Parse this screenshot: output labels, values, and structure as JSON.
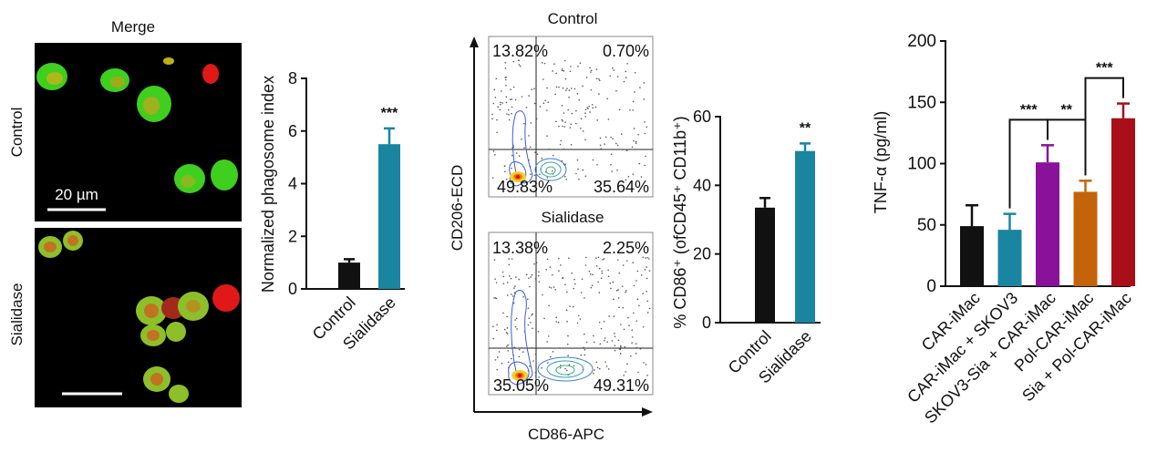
{
  "colors": {
    "control": "#111111",
    "sialidase": "#1a85a0",
    "purple": "#8a129a",
    "orange": "#c4640a",
    "darkred": "#a80f18",
    "micro_bg": "#000000",
    "cell_green": "#3fcf1f",
    "cell_red": "#e01818",
    "contour_blue": "#3a5fd0"
  },
  "micrograph": {
    "title": "Merge",
    "rows": [
      "Control",
      "Sialidase"
    ],
    "scalebar_label": "20 µm"
  },
  "flow": {
    "x_label": "CD86-APC",
    "y_label": "CD206-ECD",
    "panels": [
      {
        "title": "Control",
        "q_ul": "13.82%",
        "q_ur": "0.70%",
        "q_ll": "49.83%",
        "q_lr": "35.64%"
      },
      {
        "title": "Sialidase",
        "q_ul": "13.38%",
        "q_ur": "2.25%",
        "q_ll": "35.05%",
        "q_lr": "49.31%"
      }
    ]
  },
  "chart_data": [
    {
      "type": "bar",
      "categories": [
        "Control",
        "Sialidase"
      ],
      "values": [
        1.0,
        5.5
      ],
      "errors": [
        0.13,
        0.6
      ],
      "colors": [
        "#111111",
        "#1a85a0"
      ],
      "significance": [
        "",
        "***"
      ],
      "ylabel": "Normalized phagosome index",
      "xlabel": "",
      "ylim": [
        0,
        8
      ],
      "yticks": [
        0,
        2,
        4,
        6,
        8
      ]
    },
    {
      "type": "bar",
      "categories": [
        "Control",
        "Sialidase"
      ],
      "values": [
        33.5,
        50.0
      ],
      "errors": [
        2.8,
        2.2
      ],
      "colors": [
        "#111111",
        "#1a85a0"
      ],
      "significance": [
        "",
        "**"
      ],
      "ylabel": "% CD86⁺ (ofCD45⁺ CD11b⁺)",
      "xlabel": "",
      "ylim": [
        0,
        60
      ],
      "yticks": [
        0,
        20,
        40,
        60
      ]
    },
    {
      "type": "bar",
      "categories": [
        "CAR-iMac",
        "CAR-iMac + SKOV3",
        "SKOV3-Sia + CAR-iMac",
        "Pol-CAR-iMac",
        "Sia + Pol-CAR-iMac"
      ],
      "values": [
        49,
        46,
        101,
        77,
        137
      ],
      "errors": [
        17,
        13,
        14,
        9,
        12
      ],
      "colors": [
        "#111111",
        "#1a85a0",
        "#8a129a",
        "#c4640a",
        "#a80f18"
      ],
      "ylabel": "TNF-α (pg/ml)",
      "xlabel": "",
      "ylim": [
        0,
        200
      ],
      "yticks": [
        0,
        50,
        100,
        150,
        200
      ],
      "comparisons": [
        {
          "a": 1,
          "b": 2,
          "label": "***"
        },
        {
          "a": 2,
          "b": 3,
          "label": "**"
        },
        {
          "a": 3,
          "b": 4,
          "label": "***"
        }
      ]
    }
  ]
}
